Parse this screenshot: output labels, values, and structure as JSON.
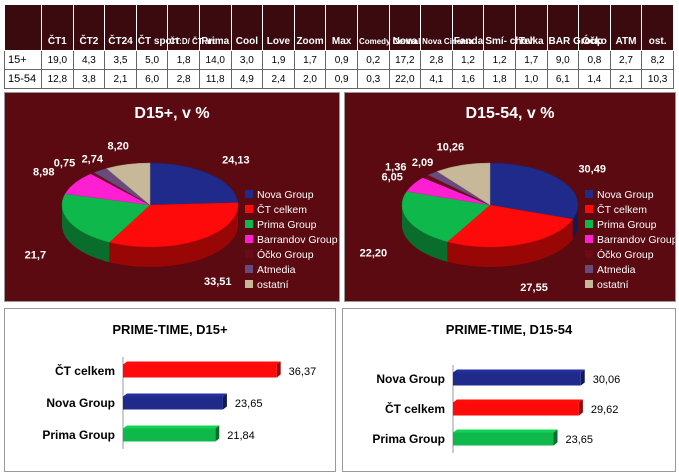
{
  "table": {
    "columns": [
      "ČT1",
      "ČT2",
      "ČT24",
      "ČT sport",
      "ČT:D/ ČT art",
      "Prima",
      "Cool",
      "Love",
      "Zoom",
      "Max",
      "Comedy Central",
      "Nova",
      "Nova Cinema",
      "Fanda",
      "Smí- chov",
      "Telka",
      "BAR Group",
      "Óčko",
      "ATM",
      "ost."
    ],
    "rows": [
      {
        "label": "15+",
        "values": [
          "19,0",
          "4,3",
          "3,5",
          "5,0",
          "1,8",
          "14,0",
          "3,0",
          "1,9",
          "1,7",
          "0,9",
          "0,2",
          "17,2",
          "2,8",
          "1,2",
          "1,2",
          "1,7",
          "9,0",
          "0,8",
          "2,7",
          "8,2"
        ]
      },
      {
        "label": "15-54",
        "values": [
          "12,8",
          "3,8",
          "2,1",
          "6,0",
          "2,8",
          "11,8",
          "4,9",
          "2,4",
          "2,0",
          "0,9",
          "0,3",
          "22,0",
          "4,1",
          "1,6",
          "1,8",
          "1,0",
          "6,1",
          "1,4",
          "2,1",
          "10,3"
        ]
      }
    ]
  },
  "colors": {
    "Nova Group": "#1f2a8a",
    "ČT celkem": "#ff0a0a",
    "Prima Group": "#0fb84a",
    "Barrandov Group": "#ff1fd2",
    "Óčko Group": "#6b0a1a",
    "Atmedia": "#6a4a7a",
    "ostatní": "#c8b89a"
  },
  "chart_data": [
    {
      "type": "pie",
      "title": "D15+, v %",
      "labels": [
        "Nova Group",
        "ČT celkem",
        "Prima Group",
        "Barrandov Group",
        "Óčko Group",
        "Atmedia",
        "ostatní"
      ],
      "values": [
        24.13,
        33.51,
        21.7,
        8.98,
        0.75,
        2.74,
        8.2
      ],
      "value_labels": [
        "24,13",
        "33,51",
        "21,7",
        "8,98",
        "0,75",
        "2,74",
        "8,20"
      ],
      "legend": "right"
    },
    {
      "type": "pie",
      "title": "D15-54, v %",
      "labels": [
        "Nova Group",
        "ČT celkem",
        "Prima Group",
        "Barrandov Group",
        "Óčko Group",
        "Atmedia",
        "ostatní"
      ],
      "values": [
        30.49,
        27.55,
        22.2,
        6.05,
        1.36,
        2.09,
        10.26
      ],
      "value_labels": [
        "30,49",
        "27,55",
        "22,20",
        "6,05",
        "1,36",
        "2,09",
        "10,26"
      ],
      "legend": "right"
    },
    {
      "type": "bar",
      "orientation": "horizontal",
      "title": "PRIME-TIME, D15+",
      "categories": [
        "ČT celkem",
        "Nova Group",
        "Prima Group"
      ],
      "values": [
        36.37,
        23.65,
        21.84
      ],
      "value_labels": [
        "36,37",
        "23,65",
        "21,84"
      ],
      "xlim": [
        0,
        40
      ]
    },
    {
      "type": "bar",
      "orientation": "horizontal",
      "title": "PRIME-TIME, D15-54",
      "categories": [
        "Nova Group",
        "ČT celkem",
        "Prima Group"
      ],
      "values": [
        30.06,
        29.62,
        23.65
      ],
      "value_labels": [
        "30,06",
        "29,62",
        "23,65"
      ],
      "xlim": [
        0,
        40
      ]
    }
  ]
}
